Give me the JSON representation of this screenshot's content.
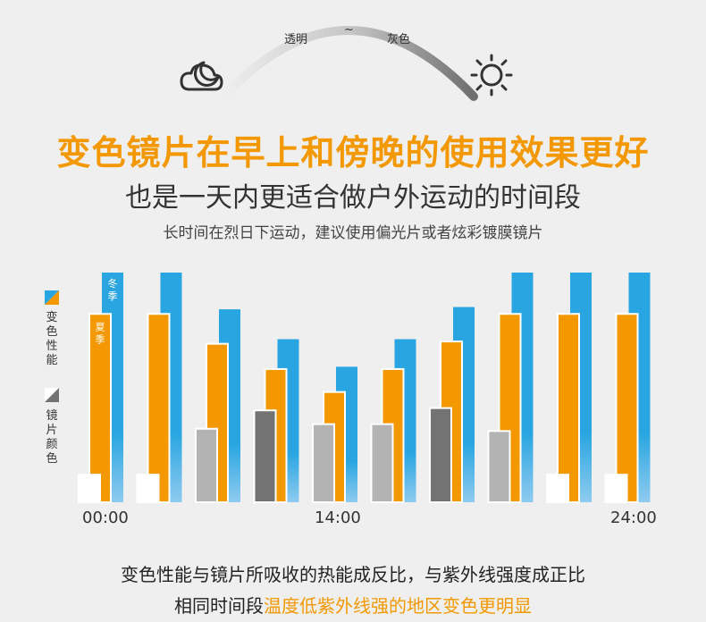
{
  "header": {
    "arc_left_label": "透明",
    "arc_mid_label": "~",
    "arc_right_label": "灰色",
    "left_icon": "moon-cloud-icon",
    "right_icon": "sun-icon",
    "title": "变色镜片在早上和傍晚的使用效果更好",
    "subtitle": "也是一天内更适合做户外运动的时间段",
    "tip": "长时间在烈日下运动，建议使用偏光片或者炫彩镀膜镜片"
  },
  "legend": {
    "performance_label": "变色性能",
    "lens_color_label": "镜片颜色"
  },
  "footer": {
    "line1": "变色性能与镜片所吸收的热能成反比，与紫外线强度成正比",
    "line2_prefix": "相同时间段",
    "line2_highlight": "温度低紫外线强的地区变色更明显"
  },
  "colors": {
    "accent": "#f39800",
    "winter": "#29a6e1",
    "summer": "#f39800",
    "text": "#333333",
    "lens_light": "#ffffff",
    "lens_mid": "#b3b3b3",
    "lens_dark": "#737373"
  },
  "chart_data": {
    "type": "bar",
    "x_ticks": [
      "00:00",
      "14:00",
      "24:00"
    ],
    "series_labels": {
      "winter": "冬季",
      "summer": "夏季"
    },
    "ylim": [
      0,
      100
    ],
    "groups": [
      {
        "winter": 100,
        "summer": 82,
        "lens": 12,
        "lens_shade": "light"
      },
      {
        "winter": 100,
        "summer": 82,
        "lens": 12,
        "lens_shade": "light"
      },
      {
        "winter": 84,
        "summer": 69,
        "lens": 32,
        "lens_shade": "mid"
      },
      {
        "winter": 71,
        "summer": 58,
        "lens": 40,
        "lens_shade": "dark"
      },
      {
        "winter": 59,
        "summer": 48,
        "lens": 34,
        "lens_shade": "mid"
      },
      {
        "winter": 71,
        "summer": 58,
        "lens": 34,
        "lens_shade": "mid"
      },
      {
        "winter": 85,
        "summer": 70,
        "lens": 41,
        "lens_shade": "dark"
      },
      {
        "winter": 100,
        "summer": 82,
        "lens": 31,
        "lens_shade": "mid"
      },
      {
        "winter": 100,
        "summer": 82,
        "lens": 12,
        "lens_shade": "light"
      },
      {
        "winter": 100,
        "summer": 82,
        "lens": 12,
        "lens_shade": "light"
      }
    ]
  }
}
